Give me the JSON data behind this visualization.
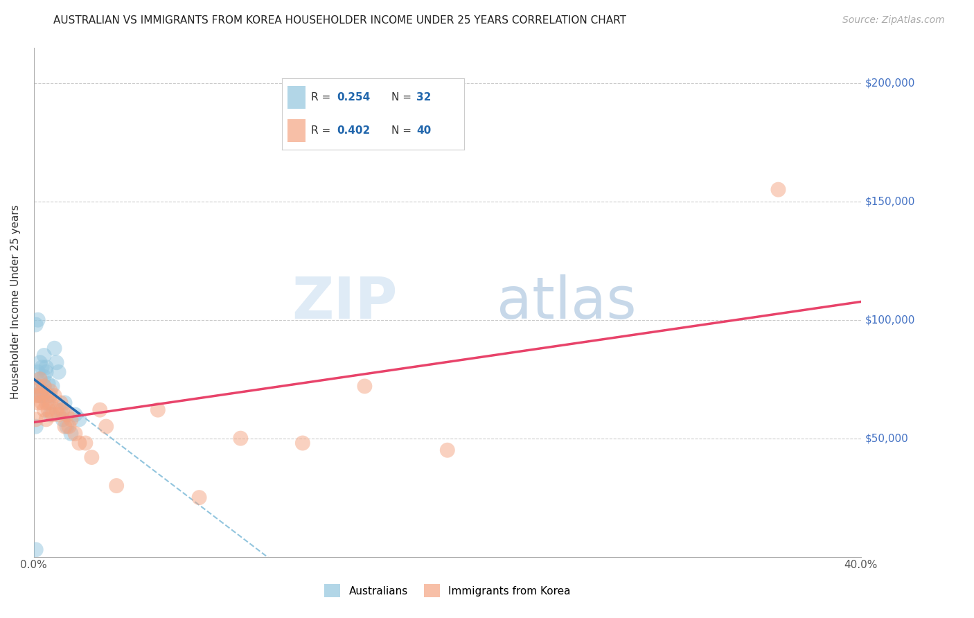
{
  "title": "AUSTRALIAN VS IMMIGRANTS FROM KOREA HOUSEHOLDER INCOME UNDER 25 YEARS CORRELATION CHART",
  "source": "Source: ZipAtlas.com",
  "ylabel": "Householder Income Under 25 years",
  "watermark_zip": "ZIP",
  "watermark_atlas": "atlas",
  "legend_aus_R": "0.254",
  "legend_aus_N": "32",
  "legend_kor_R": "0.402",
  "legend_kor_N": "40",
  "ytick_labels": [
    "$50,000",
    "$100,000",
    "$150,000",
    "$200,000"
  ],
  "ytick_values": [
    50000,
    100000,
    150000,
    200000
  ],
  "color_aus": "#92c5de",
  "color_kor": "#f4a582",
  "color_aus_line": "#2166ac",
  "color_kor_line": "#e8436a",
  "color_dash_line": "#92c5de",
  "aus_x": [
    0.001,
    0.001,
    0.002,
    0.002,
    0.003,
    0.003,
    0.003,
    0.004,
    0.004,
    0.004,
    0.005,
    0.005,
    0.005,
    0.006,
    0.006,
    0.007,
    0.007,
    0.008,
    0.008,
    0.009,
    0.01,
    0.011,
    0.012,
    0.013,
    0.014,
    0.015,
    0.016,
    0.018,
    0.02,
    0.022,
    0.002,
    0.001
  ],
  "aus_y": [
    3000,
    55000,
    72000,
    78000,
    68000,
    75000,
    82000,
    80000,
    70000,
    68000,
    76000,
    72000,
    85000,
    80000,
    78000,
    73000,
    65000,
    68000,
    60000,
    72000,
    88000,
    82000,
    78000,
    62000,
    58000,
    65000,
    55000,
    52000,
    60000,
    58000,
    100000,
    98000
  ],
  "kor_x": [
    0.001,
    0.001,
    0.002,
    0.002,
    0.003,
    0.003,
    0.004,
    0.004,
    0.005,
    0.005,
    0.006,
    0.006,
    0.007,
    0.007,
    0.008,
    0.008,
    0.009,
    0.01,
    0.011,
    0.012,
    0.013,
    0.014,
    0.015,
    0.016,
    0.017,
    0.018,
    0.02,
    0.022,
    0.025,
    0.028,
    0.032,
    0.035,
    0.04,
    0.06,
    0.08,
    0.1,
    0.13,
    0.16,
    0.2,
    0.36
  ],
  "kor_y": [
    58000,
    68000,
    72000,
    65000,
    68000,
    75000,
    70000,
    65000,
    72000,
    62000,
    65000,
    58000,
    68000,
    62000,
    70000,
    65000,
    60000,
    68000,
    62000,
    60000,
    65000,
    62000,
    55000,
    60000,
    55000,
    58000,
    52000,
    48000,
    48000,
    42000,
    62000,
    55000,
    30000,
    62000,
    25000,
    50000,
    48000,
    72000,
    45000,
    155000
  ],
  "aus_line_x_end": 0.022,
  "xmin": 0.0,
  "xmax": 0.4,
  "ymin": 0,
  "ymax": 215000
}
